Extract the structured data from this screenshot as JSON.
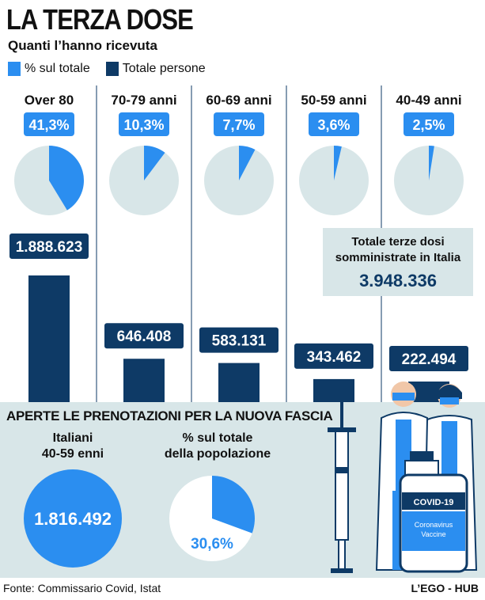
{
  "header": {
    "title": "LA TERZA DOSE",
    "subtitle": "Quanti l’hanno ricevuta"
  },
  "legend": {
    "items": [
      {
        "label": "% sul totale",
        "color": "#2b8ef0"
      },
      {
        "label": "Totale persone",
        "color": "#0e3a66"
      }
    ]
  },
  "chart_data": {
    "type": "bar",
    "categories": [
      "Over 80",
      "70-79 anni",
      "60-69 anni",
      "50-59 anni",
      "40-49 anni"
    ],
    "percent_labels": [
      "41,3%",
      "10,3%",
      "7,7%",
      "3,6%",
      "2,5%"
    ],
    "percent_values": [
      41.3,
      10.3,
      7.7,
      3.6,
      2.5
    ],
    "value_labels": [
      "1.888.623",
      "646.408",
      "583.131",
      "343.462",
      "222.494"
    ],
    "values": [
      1888623,
      646408,
      583131,
      343462,
      222494
    ],
    "series": [
      {
        "name": "% sul totale",
        "values": [
          41.3,
          10.3,
          7.7,
          3.6,
          2.5
        ]
      },
      {
        "name": "Totale persone",
        "values": [
          1888623,
          646408,
          583131,
          343462,
          222494
        ]
      }
    ],
    "colors": {
      "pie": "#2b8ef0",
      "pie_bg": "#d8e6e8",
      "bar": "#0e3a66"
    }
  },
  "total": {
    "label": "Totale terze dosi somministrate in Italia",
    "value": "3.948.336"
  },
  "booking": {
    "title": "APERTE LE PRENOTAZIONI PER LA NUOVA FASCIA",
    "italiani_label_1": "Italiani",
    "italiani_label_2": "40-59 enni",
    "italiani_value": "1.816.492",
    "pct_label_1": "% sul totale",
    "pct_label_2": "della popolazione",
    "pct_value": "30,6%",
    "pct_number": 30.6
  },
  "illustration": {
    "vial_label": "COVID-19",
    "vial_sub_1": "Coronavirus",
    "vial_sub_2": "Vaccine"
  },
  "footer": {
    "source": "Fonte: Commissario Covid, Istat",
    "brand": "L’EGO - HUB"
  }
}
